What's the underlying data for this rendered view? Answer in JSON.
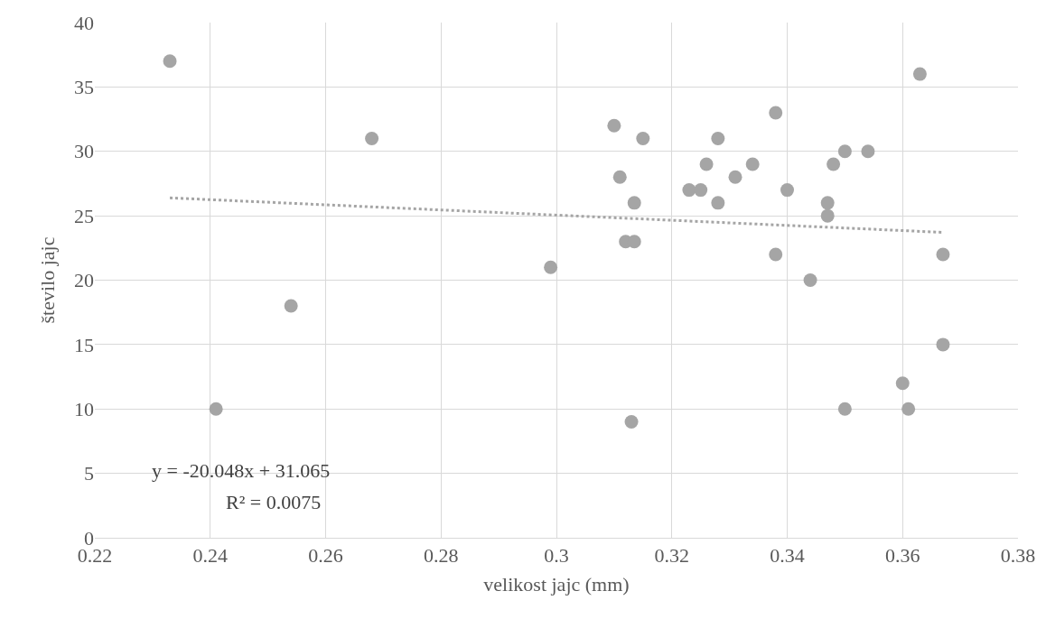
{
  "chart_data": {
    "type": "scatter",
    "xlabel": "velikost jajc (mm)",
    "ylabel": "število jajc",
    "xlim": [
      0.22,
      0.38
    ],
    "xticks": [
      0.22,
      0.24,
      0.26,
      0.28,
      0.3,
      0.32,
      0.34,
      0.36,
      0.38
    ],
    "ylim": [
      0,
      40
    ],
    "yticks": [
      0,
      5,
      10,
      15,
      20,
      25,
      30,
      35,
      40
    ],
    "grid": true,
    "series": [
      {
        "marker": "circle",
        "color": "#a5a5a5",
        "x": [
          0.233,
          0.241,
          0.254,
          0.268,
          0.299,
          0.31,
          0.311,
          0.312,
          0.3135,
          0.3135,
          0.315,
          0.313,
          0.323,
          0.325,
          0.326,
          0.328,
          0.328,
          0.331,
          0.334,
          0.338,
          0.338,
          0.34,
          0.344,
          0.347,
          0.347,
          0.348,
          0.35,
          0.35,
          0.354,
          0.36,
          0.361,
          0.363,
          0.367,
          0.367
        ],
        "values": [
          37,
          10,
          18,
          31,
          21,
          32,
          28,
          23,
          23,
          26,
          31,
          9,
          27,
          27,
          29,
          31,
          26,
          28,
          29,
          33,
          22,
          27,
          20,
          26,
          25,
          29,
          30,
          10,
          30,
          12,
          10,
          36,
          22,
          15
        ]
      },
      {
        "type": "line",
        "marker": "none",
        "color": "#a5a5a5",
        "line_style": "dotted",
        "x": [
          0.233,
          0.367
        ],
        "values": [
          26.39,
          23.71
        ]
      }
    ],
    "annotations": [
      "y = -20.048x + 31.065",
      "R² = 0.0075"
    ]
  }
}
